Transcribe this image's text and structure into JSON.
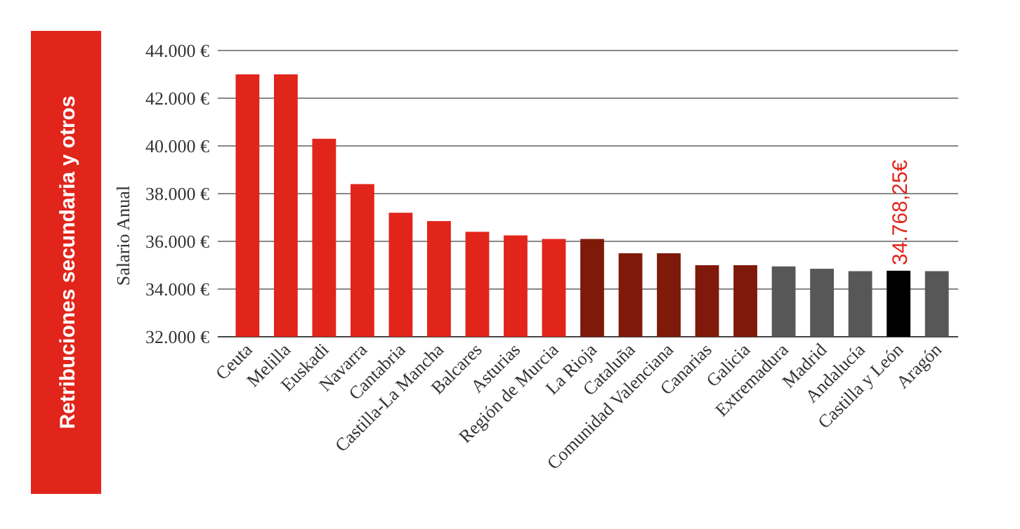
{
  "chart_data": {
    "type": "bar",
    "title": "Retribuciones secundaria y otros",
    "ylabel": "Salario Anual",
    "categories": [
      "Ceuta",
      "Melilla",
      "Euskadi",
      "Navarra",
      "Cantabria",
      "Castilla-La Mancha",
      "Balcares",
      "Asturias",
      "Región de Murcia",
      "La Rioja",
      "Cataluña",
      "Comunidad Valenciana",
      "Canarias",
      "Galicia",
      "Extremadura",
      "Madrid",
      "Andalucía",
      "Castilla y León",
      "Aragón"
    ],
    "values": [
      43000,
      43000,
      40300,
      38400,
      37200,
      36850,
      36400,
      36250,
      36100,
      36100,
      35500,
      35500,
      35000,
      35000,
      34950,
      34850,
      34750,
      34768.25,
      34750
    ],
    "colors": [
      "#e1251b",
      "#e1251b",
      "#e1251b",
      "#e1251b",
      "#e1251b",
      "#e1251b",
      "#e1251b",
      "#e1251b",
      "#e1251b",
      "#7f1a0a",
      "#7f1a0a",
      "#7f1a0a",
      "#7f1a0a",
      "#7f1a0a",
      "#575757",
      "#575757",
      "#575757",
      "#000000",
      "#575757"
    ],
    "value_labels": [
      null,
      null,
      null,
      null,
      null,
      null,
      null,
      null,
      null,
      null,
      null,
      null,
      null,
      null,
      null,
      null,
      null,
      "34.768,25€",
      null
    ],
    "ylim": [
      32000,
      44000
    ],
    "yticks": [
      {
        "value": 32000,
        "label": "32.000 €"
      },
      {
        "value": 34000,
        "label": "34.000 €"
      },
      {
        "value": 36000,
        "label": "36.000 €"
      },
      {
        "value": 38000,
        "label": "38.000 €"
      },
      {
        "value": 40000,
        "label": "40.000 €"
      },
      {
        "value": 42000,
        "label": "42.000 €"
      },
      {
        "value": 44000,
        "label": "44.000 €"
      }
    ],
    "grid": "y"
  }
}
